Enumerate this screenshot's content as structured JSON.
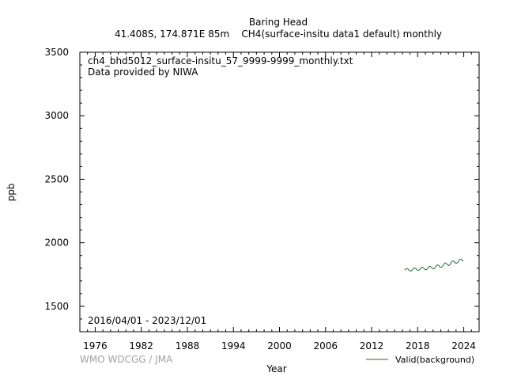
{
  "header": {
    "station": "Baring Head",
    "info": "41.408S, 174.871E 85m    CH4(surface-insitu data1 default) monthly"
  },
  "annotations": {
    "file": "ch4_bhd5012_surface-insitu_57_9999-9999_monthly.txt",
    "provider": "Data provided by NIWA",
    "period": "2016/04/01 - 2023/12/01",
    "credit": "WMO WDCGG / JMA"
  },
  "colors": {
    "series": "#1a6b3c",
    "frame": "#000000",
    "credit": "#a0a0a0"
  },
  "chart_data": {
    "type": "line",
    "title": "Baring Head",
    "subtitle": "41.408S, 174.871E 85m    CH4(surface-insitu data1 default) monthly",
    "xlabel": "Year",
    "ylabel": "ppb",
    "xlim": [
      1974.0,
      2026.0
    ],
    "ylim": [
      1300,
      3500
    ],
    "xticks": [
      1976,
      1982,
      1988,
      1994,
      2000,
      2006,
      2012,
      2018,
      2024
    ],
    "yticks": [
      1500,
      2000,
      2500,
      3000,
      3500
    ],
    "grid": false,
    "legend": "bottom-right",
    "series": [
      {
        "name": "Valid(background)",
        "color": "#1a6b3c",
        "x": [
          "2016-04",
          "2016-05",
          "2016-06",
          "2016-07",
          "2016-08",
          "2016-09",
          "2016-10",
          "2016-11",
          "2016-12",
          "2017-01",
          "2017-02",
          "2017-03",
          "2017-04",
          "2017-05",
          "2017-06",
          "2017-07",
          "2017-08",
          "2017-09",
          "2017-10",
          "2017-11",
          "2017-12",
          "2018-01",
          "2018-02",
          "2018-03",
          "2018-04",
          "2018-05",
          "2018-06",
          "2018-07",
          "2018-08",
          "2018-09",
          "2018-10",
          "2018-11",
          "2018-12",
          "2019-01",
          "2019-02",
          "2019-03",
          "2019-04",
          "2019-05",
          "2019-06",
          "2019-07",
          "2019-08",
          "2019-09",
          "2019-10",
          "2019-11",
          "2019-12",
          "2020-01",
          "2020-02",
          "2020-03",
          "2020-04",
          "2020-05",
          "2020-06",
          "2020-07",
          "2020-08",
          "2020-09",
          "2020-10",
          "2020-11",
          "2020-12",
          "2021-01",
          "2021-02",
          "2021-03",
          "2021-04",
          "2021-05",
          "2021-06",
          "2021-07",
          "2021-08",
          "2021-09",
          "2021-10",
          "2021-11",
          "2021-12",
          "2022-01",
          "2022-02",
          "2022-03",
          "2022-04",
          "2022-05",
          "2022-06",
          "2022-07",
          "2022-08",
          "2022-09",
          "2022-10",
          "2022-11",
          "2022-12",
          "2023-01",
          "2023-02",
          "2023-03",
          "2023-04",
          "2023-05",
          "2023-06",
          "2023-07",
          "2023-08",
          "2023-09",
          "2023-10",
          "2023-11",
          "2023-12"
        ],
        "values": [
          1785,
          1789,
          1794,
          1797,
          1797,
          1795,
          1790,
          1785,
          1781,
          1778,
          1778,
          1781,
          1787,
          1794,
          1799,
          1802,
          1802,
          1799,
          1794,
          1789,
          1785,
          1783,
          1783,
          1786,
          1792,
          1799,
          1804,
          1807,
          1807,
          1804,
          1799,
          1794,
          1790,
          1788,
          1788,
          1792,
          1798,
          1805,
          1811,
          1814,
          1814,
          1811,
          1806,
          1801,
          1797,
          1795,
          1796,
          1800,
          1807,
          1815,
          1821,
          1825,
          1825,
          1822,
          1817,
          1812,
          1808,
          1806,
          1807,
          1812,
          1820,
          1829,
          1836,
          1840,
          1841,
          1838,
          1833,
          1827,
          1823,
          1821,
          1823,
          1828,
          1836,
          1845,
          1852,
          1857,
          1858,
          1855,
          1850,
          1844,
          1840,
          1839,
          1841,
          1846,
          1853,
          1861,
          1867,
          1871,
          1871,
          1868,
          1863,
          1858,
          1855
        ]
      }
    ]
  }
}
